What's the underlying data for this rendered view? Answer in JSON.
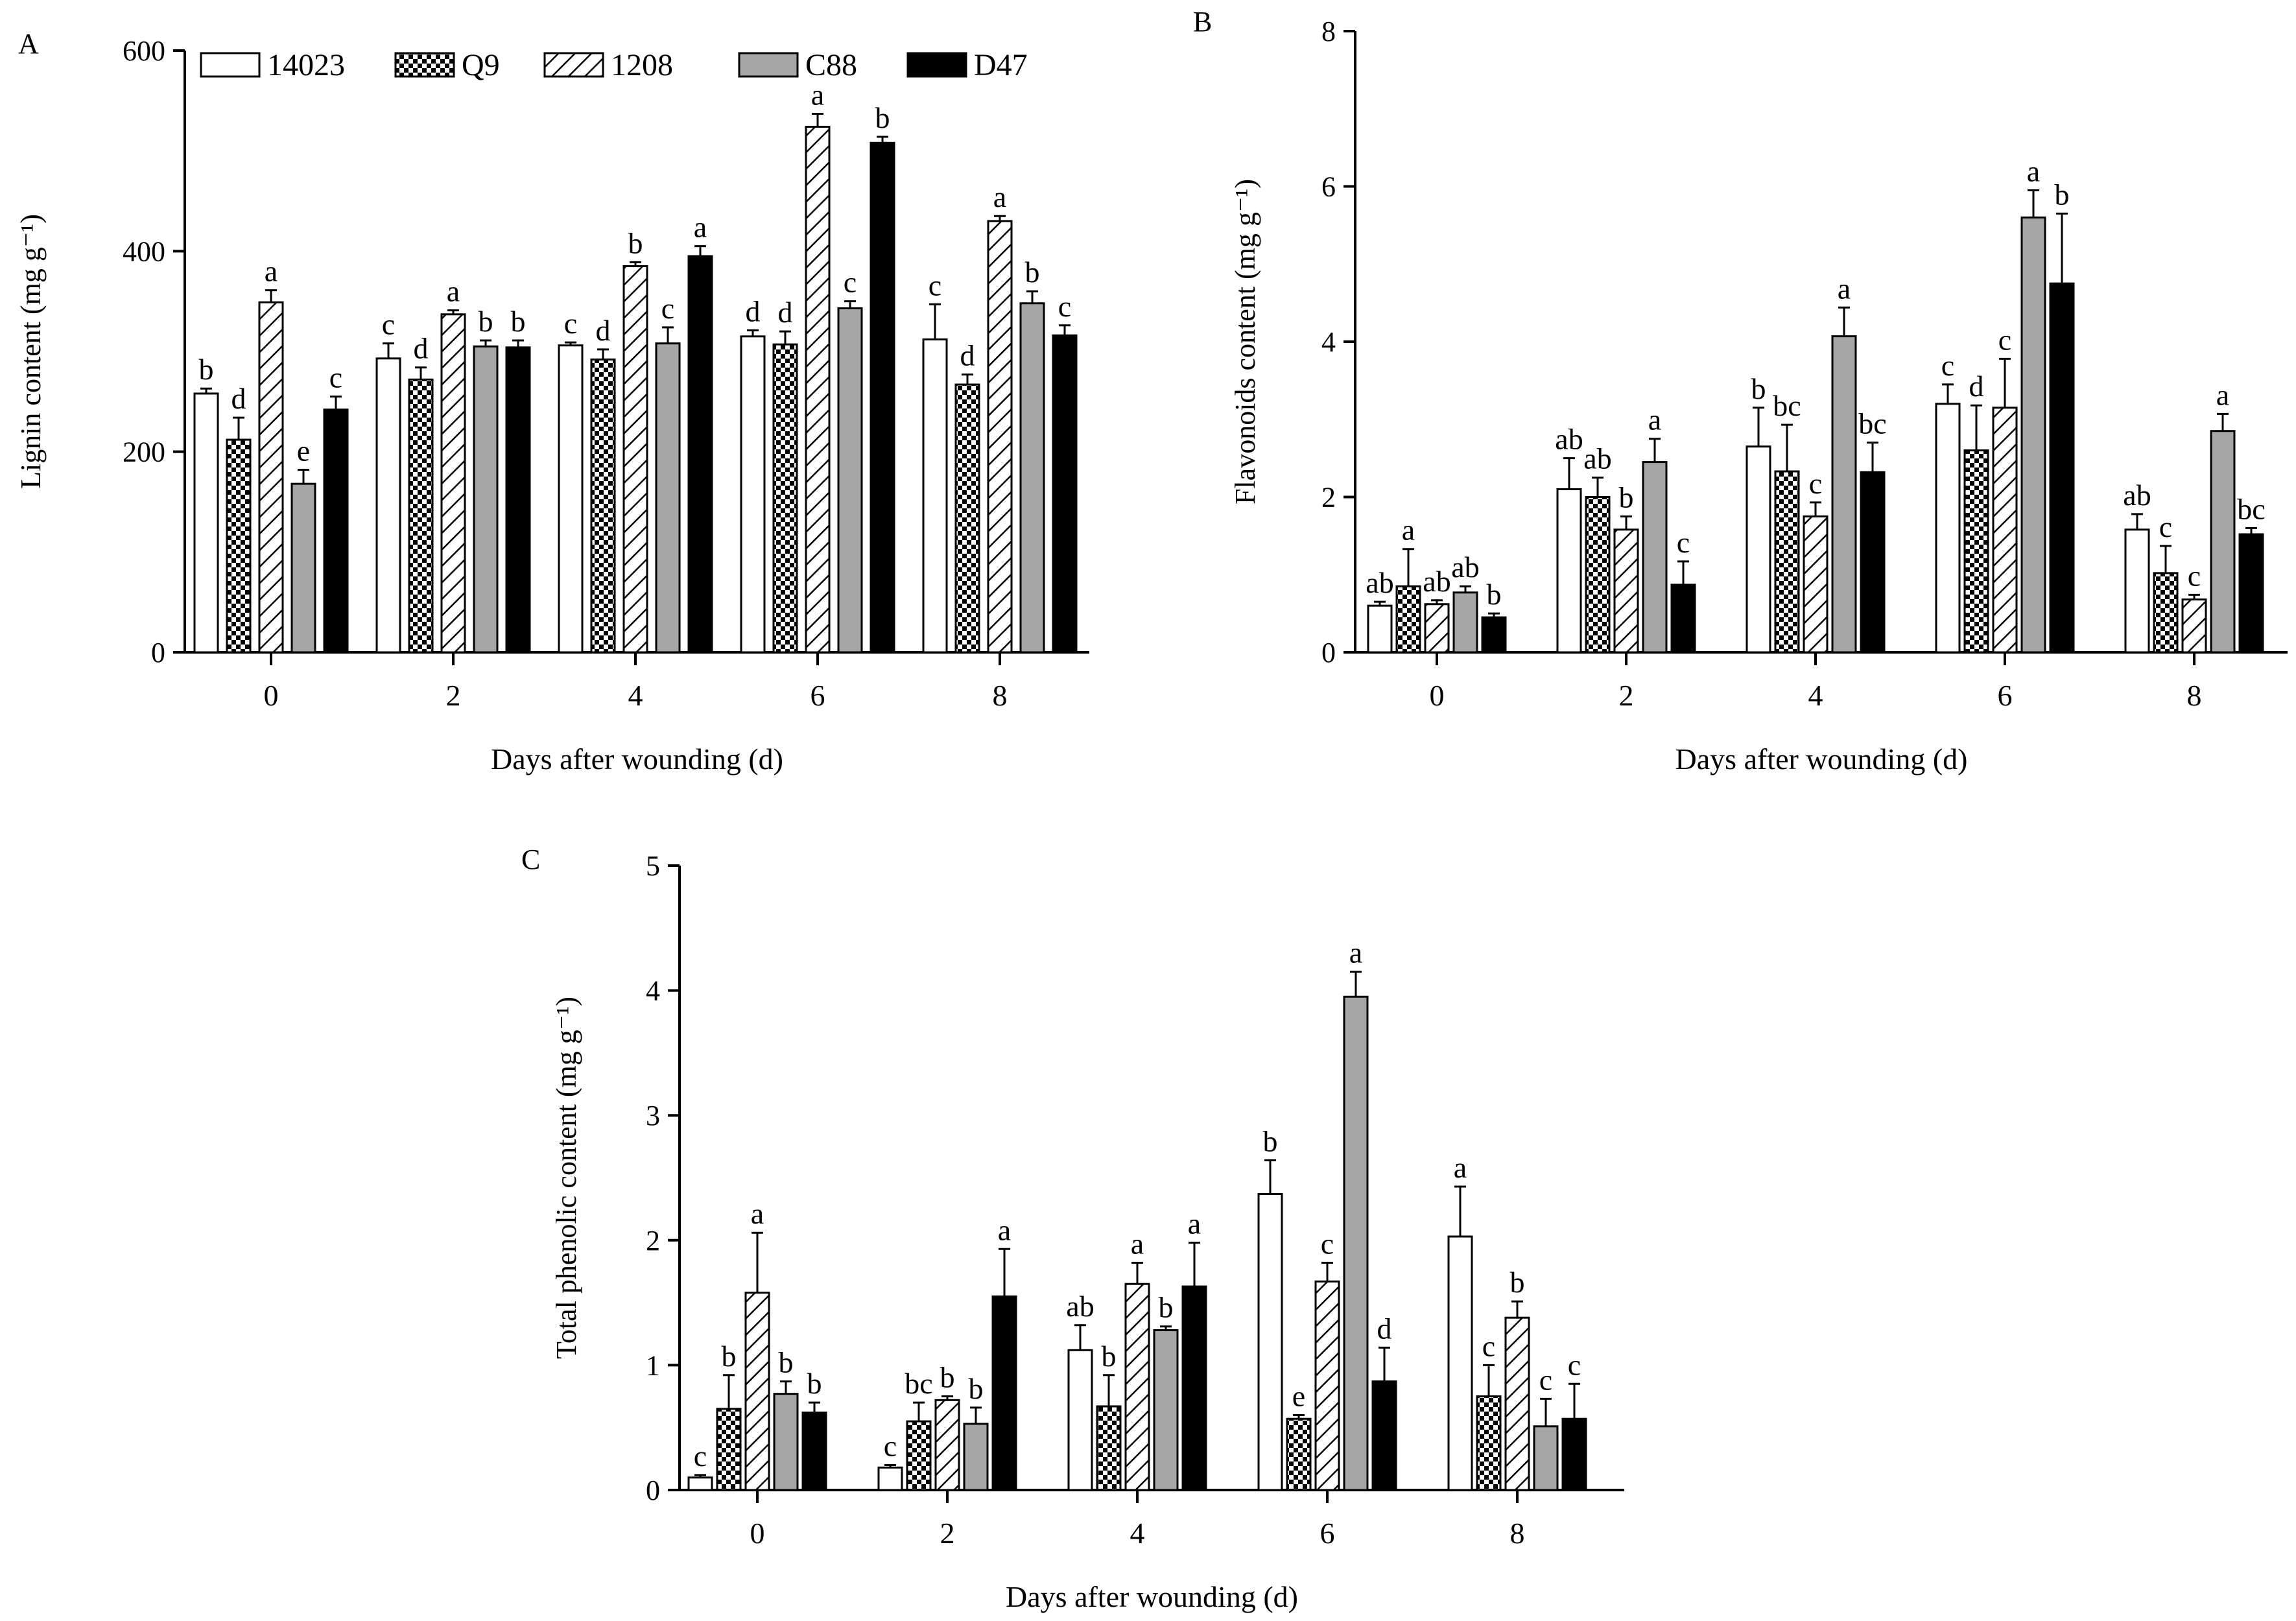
{
  "colors": {
    "14023": "#ffffff",
    "Q9": "checker",
    "1208": "hatch",
    "C88": "#a6a6a6",
    "D47": "#000000"
  },
  "legend": {
    "entries": [
      {
        "label": "14023",
        "style": "white"
      },
      {
        "label": "Q9",
        "style": "checker"
      },
      {
        "label": "1208",
        "style": "hatch"
      },
      {
        "label": "C88",
        "style": "gray"
      },
      {
        "label": "D47",
        "style": "black"
      }
    ]
  },
  "chart_data": [
    {
      "type": "bar",
      "panel": "A",
      "xlabel": "Days after wounding (d)",
      "ylabel": "Lignin content (mg g⁻¹)",
      "ylim": [
        0,
        600
      ],
      "yticks": [
        0,
        200,
        400,
        600
      ],
      "categories": [
        "0",
        "2",
        "4",
        "6",
        "8"
      ],
      "series": [
        {
          "name": "14023",
          "values": [
            258,
            293,
            306,
            315,
            312
          ],
          "errors": [
            5,
            15,
            3,
            6,
            35
          ],
          "letters": [
            "b",
            "c",
            "c",
            "d",
            "c"
          ]
        },
        {
          "name": "Q9",
          "values": [
            212,
            272,
            292,
            307,
            267
          ],
          "errors": [
            22,
            12,
            10,
            13,
            10
          ],
          "letters": [
            "d",
            "d",
            "d",
            "d",
            "d"
          ]
        },
        {
          "name": "1208",
          "values": [
            349,
            337,
            385,
            524,
            430
          ],
          "errors": [
            12,
            4,
            4,
            13,
            5
          ],
          "letters": [
            "a",
            "a",
            "b",
            "a",
            "a"
          ]
        },
        {
          "name": "C88",
          "values": [
            168,
            305,
            308,
            343,
            348
          ],
          "errors": [
            14,
            6,
            16,
            7,
            12
          ],
          "letters": [
            "e",
            "b",
            "c",
            "c",
            "b"
          ]
        },
        {
          "name": "D47",
          "values": [
            242,
            304,
            395,
            508,
            316
          ],
          "errors": [
            13,
            7,
            10,
            6,
            10
          ],
          "letters": [
            "c",
            "b",
            "a",
            "b",
            "c"
          ]
        }
      ]
    },
    {
      "type": "bar",
      "panel": "B",
      "xlabel": "Days after wounding (d)",
      "ylabel": "Flavonoids content (mg g⁻¹)",
      "ylim": [
        0,
        8
      ],
      "yticks": [
        0,
        2,
        4,
        6,
        8
      ],
      "categories": [
        "0",
        "2",
        "4",
        "6",
        "8"
      ],
      "series": [
        {
          "name": "14023",
          "values": [
            0.6,
            2.1,
            2.65,
            3.2,
            1.58
          ],
          "errors": [
            0.05,
            0.4,
            0.5,
            0.25,
            0.2
          ],
          "letters": [
            "ab",
            "ab",
            "b",
            "c",
            "ab"
          ]
        },
        {
          "name": "Q9",
          "values": [
            0.85,
            2.0,
            2.33,
            2.6,
            1.02
          ],
          "errors": [
            0.48,
            0.25,
            0.6,
            0.58,
            0.35
          ],
          "letters": [
            "a",
            "ab",
            "bc",
            "d",
            "c"
          ]
        },
        {
          "name": "1208",
          "values": [
            0.62,
            1.58,
            1.75,
            3.15,
            0.68
          ],
          "errors": [
            0.05,
            0.17,
            0.18,
            0.63,
            0.06
          ],
          "letters": [
            "ab",
            "b",
            "c",
            "c",
            "c"
          ]
        },
        {
          "name": "C88",
          "values": [
            0.77,
            2.45,
            4.07,
            5.6,
            2.85
          ],
          "errors": [
            0.08,
            0.3,
            0.37,
            0.35,
            0.22
          ],
          "letters": [
            "ab",
            "a",
            "a",
            "a",
            "a"
          ]
        },
        {
          "name": "D47",
          "values": [
            0.45,
            0.87,
            2.32,
            4.75,
            1.52
          ],
          "errors": [
            0.05,
            0.3,
            0.38,
            0.9,
            0.08
          ],
          "letters": [
            "b",
            "c",
            "bc",
            "b",
            "bc"
          ]
        }
      ]
    },
    {
      "type": "bar",
      "panel": "C",
      "xlabel": "Days after wounding (d)",
      "ylabel": "Total phenolic content (mg g⁻¹)",
      "ylim": [
        0,
        5
      ],
      "yticks": [
        0,
        1,
        2,
        3,
        4,
        5
      ],
      "categories": [
        "0",
        "2",
        "4",
        "6",
        "8"
      ],
      "series": [
        {
          "name": "14023",
          "values": [
            0.1,
            0.18,
            1.12,
            2.37,
            2.03
          ],
          "errors": [
            0.02,
            0.02,
            0.2,
            0.27,
            0.4
          ],
          "letters": [
            "c",
            "c",
            "ab",
            "b",
            "a"
          ]
        },
        {
          "name": "Q9",
          "values": [
            0.65,
            0.55,
            0.67,
            0.57,
            0.75
          ],
          "errors": [
            0.27,
            0.15,
            0.25,
            0.03,
            0.25
          ],
          "letters": [
            "b",
            "bc",
            "b",
            "e",
            "c"
          ]
        },
        {
          "name": "1208",
          "values": [
            1.58,
            0.72,
            1.65,
            1.67,
            1.38
          ],
          "errors": [
            0.48,
            0.03,
            0.17,
            0.15,
            0.13
          ],
          "letters": [
            "a",
            "b",
            "a",
            "c",
            "b"
          ]
        },
        {
          "name": "C88",
          "values": [
            0.77,
            0.53,
            1.28,
            3.95,
            0.51
          ],
          "errors": [
            0.1,
            0.13,
            0.03,
            0.2,
            0.22
          ],
          "letters": [
            "b",
            "b",
            "b",
            "a",
            "c"
          ]
        },
        {
          "name": "D47",
          "values": [
            0.62,
            1.55,
            1.63,
            0.87,
            0.57
          ],
          "errors": [
            0.08,
            0.38,
            0.35,
            0.27,
            0.28
          ],
          "letters": [
            "b",
            "a",
            "a",
            "d",
            "c"
          ]
        }
      ]
    }
  ]
}
